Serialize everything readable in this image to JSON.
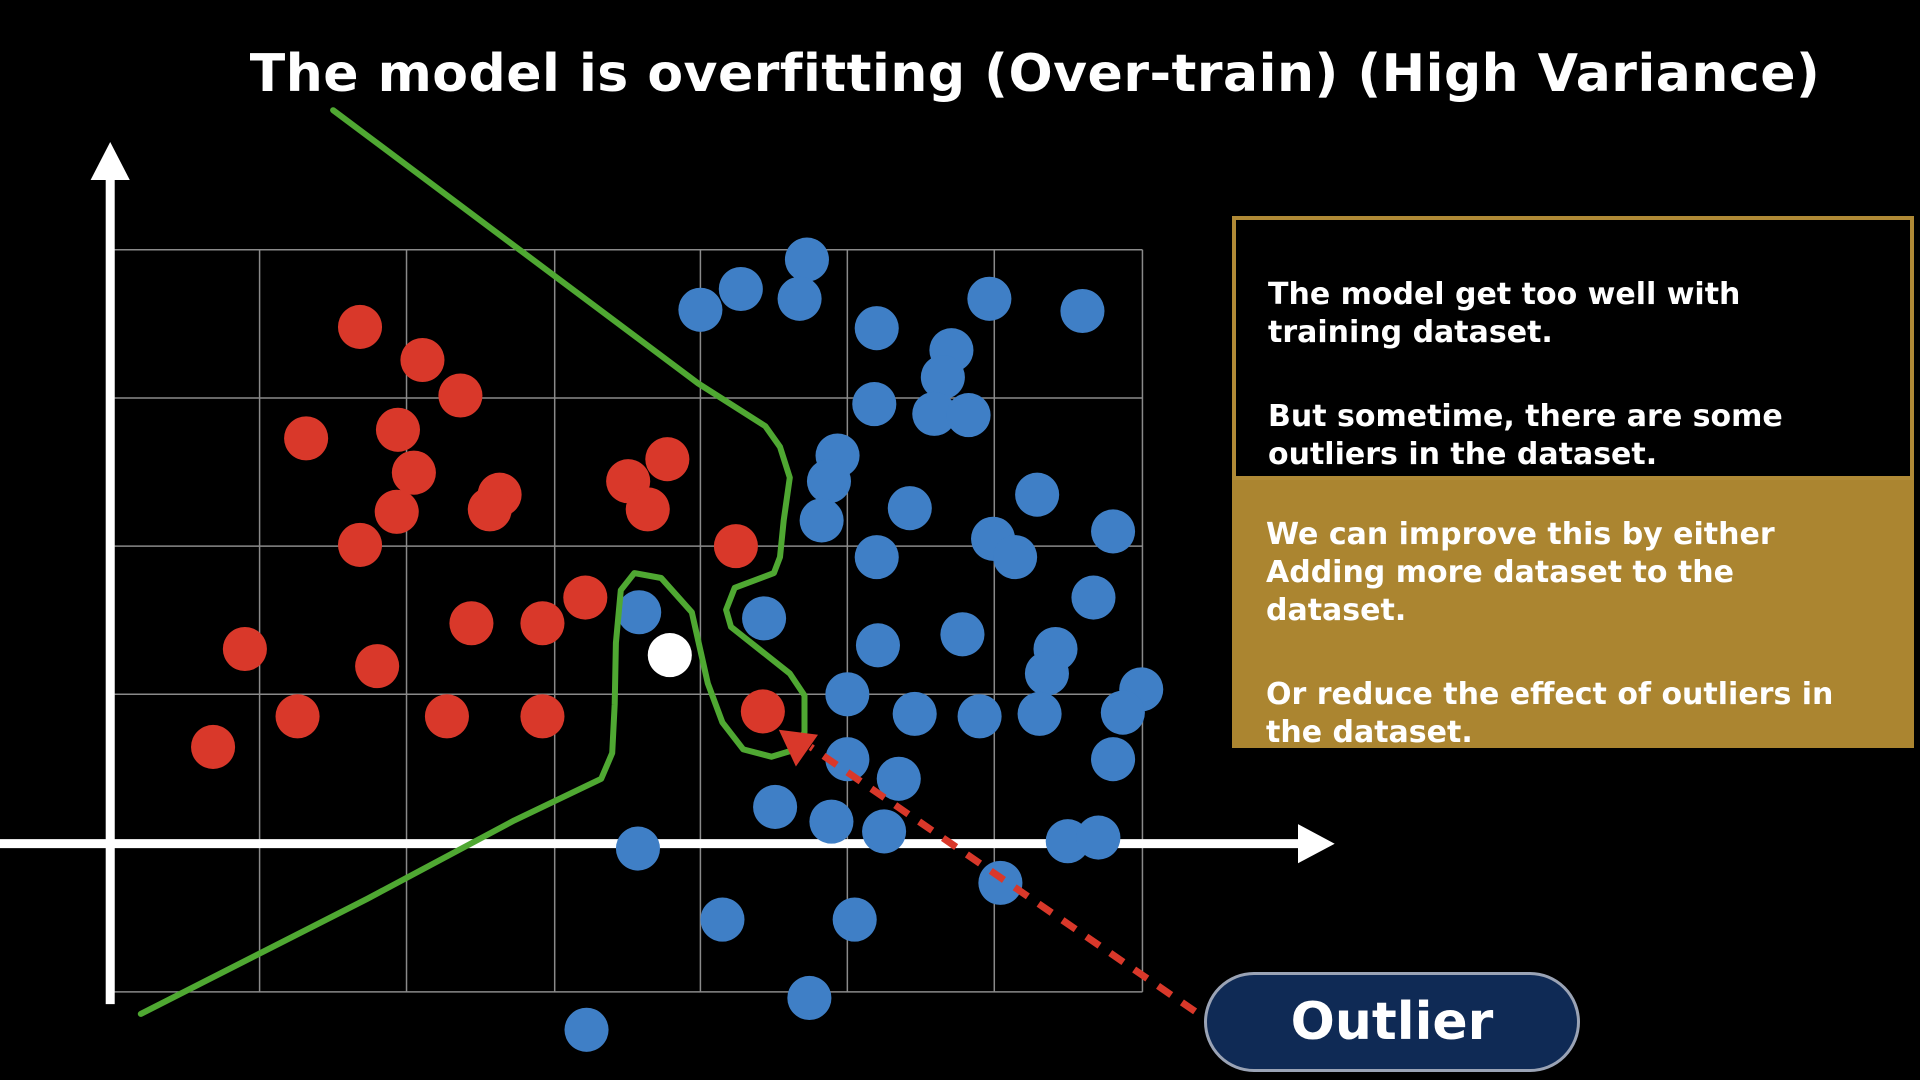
{
  "title": "The model is overfitting (Over-train) (High Variance)",
  "info": {
    "top_paragraphs": [
      "The model get too well with training dataset.",
      "But sometime, there are some outliers in the dataset."
    ],
    "bottom_paragraphs": [
      "We can improve this by either Adding more dataset to the dataset.",
      "Or reduce the effect of outliers in the dataset."
    ]
  },
  "outlier_label": "Outlier",
  "colors": {
    "background": "#000000",
    "red_class": "#d9382a",
    "blue_class": "#3f7fc6",
    "new_point": "#ffffff",
    "boundary": "#4fa832",
    "grid": "#8a8a8a",
    "axes": "#ffffff",
    "arrow": "#d9382a",
    "panel_border": "#b08a36",
    "panel_fill": "#ab8530",
    "badge_fill": "#0f2a55"
  }
}
